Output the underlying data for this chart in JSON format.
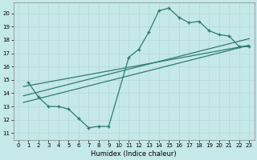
{
  "xlabel": "Humidex (Indice chaleur)",
  "bg_color": "#c5e8e8",
  "grid_color": "#b8d8d8",
  "line_color": "#2d7d6f",
  "xlim": [
    -0.5,
    23.5
  ],
  "ylim": [
    10.5,
    20.8
  ],
  "xticks": [
    0,
    1,
    2,
    3,
    4,
    5,
    6,
    7,
    8,
    9,
    10,
    11,
    12,
    13,
    14,
    15,
    16,
    17,
    18,
    19,
    20,
    21,
    22,
    23
  ],
  "yticks": [
    11,
    12,
    13,
    14,
    15,
    16,
    17,
    18,
    19,
    20
  ],
  "curve_x": [
    1,
    2,
    3,
    4,
    5,
    6,
    7,
    8,
    9,
    11,
    12,
    13,
    14,
    15,
    16,
    17,
    18,
    19,
    20,
    21,
    22,
    23
  ],
  "curve_y": [
    14.8,
    13.7,
    13.0,
    13.0,
    12.8,
    12.1,
    11.4,
    11.5,
    11.5,
    16.7,
    17.3,
    18.6,
    20.2,
    20.4,
    19.7,
    19.3,
    19.4,
    18.7,
    18.4,
    18.3,
    17.5,
    17.5
  ],
  "line1_x": [
    0.5,
    23
  ],
  "line1_y": [
    14.5,
    17.6
  ],
  "line2_x": [
    0.5,
    23
  ],
  "line2_y": [
    13.3,
    17.6
  ],
  "line3_x": [
    0.5,
    23
  ],
  "line3_y": [
    13.8,
    18.1
  ]
}
